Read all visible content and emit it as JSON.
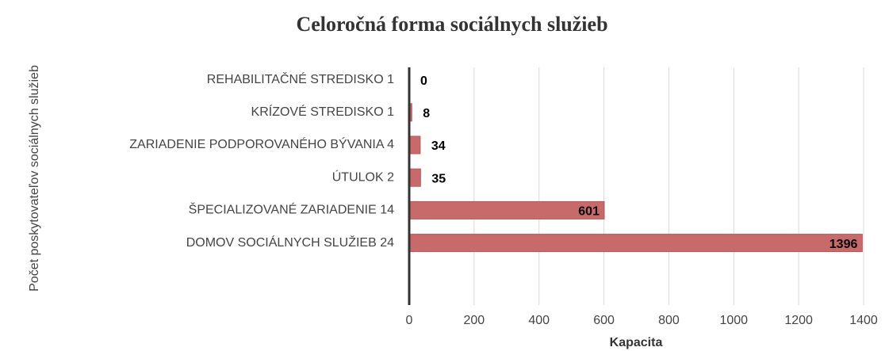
{
  "chart_data": {
    "type": "bar",
    "orientation": "horizontal",
    "title": "Celoročná forma sociálnych služieb",
    "x_label": "Kapacita",
    "y_label": "Počet poskytovateľov sociálnych služieb",
    "categories": [
      "REHABILITAČNÉ STREDISKO 1",
      "KRÍZOVÉ STREDISKO 1",
      "ZARIADENIE PODPOROVANÉHO BÝVANIA 4",
      "ÚTULOK 2",
      "ŠPECIALIZOVANÉ ZARIADENIE 14",
      "DOMOV SOCIÁLNYCH SLUŽIEB 24",
      null
    ],
    "values": [
      0,
      8,
      34,
      35,
      601,
      1396,
      null
    ],
    "color": "#c96a6a",
    "xlim": [
      0,
      1400
    ],
    "xticks": [
      0,
      200,
      400,
      600,
      800,
      1000,
      1200,
      1400
    ],
    "grid": true
  }
}
